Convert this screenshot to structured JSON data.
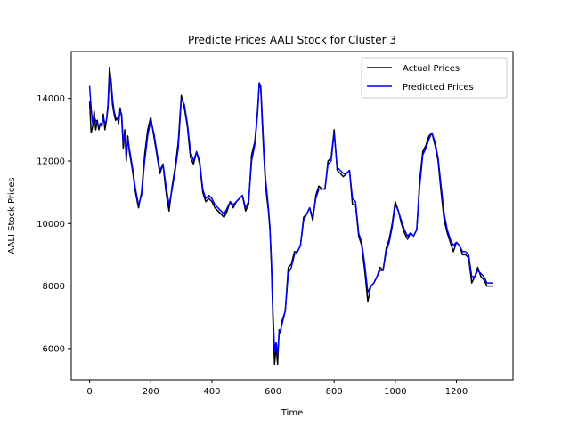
{
  "chart_data": {
    "type": "line",
    "title": "Predicte Prices AALI Stock for Cluster 3",
    "xlabel": "Time",
    "ylabel": "AALI Stock Prices",
    "xlim": [
      -60,
      1385
    ],
    "ylim": [
      5000,
      15500
    ],
    "xticks": [
      0,
      200,
      400,
      600,
      800,
      1000,
      1200
    ],
    "yticks": [
      6000,
      8000,
      10000,
      12000,
      14000
    ],
    "grid": false,
    "legend_position": "top-right",
    "series": [
      {
        "name": "Actual Prices",
        "color": "#000000",
        "x": [
          0,
          5,
          10,
          15,
          20,
          25,
          30,
          35,
          40,
          45,
          50,
          55,
          60,
          65,
          70,
          75,
          80,
          85,
          90,
          95,
          100,
          105,
          110,
          115,
          120,
          125,
          130,
          140,
          150,
          160,
          170,
          180,
          190,
          200,
          210,
          220,
          230,
          240,
          250,
          260,
          270,
          280,
          290,
          300,
          310,
          320,
          330,
          340,
          350,
          360,
          370,
          380,
          390,
          400,
          410,
          420,
          430,
          440,
          450,
          460,
          470,
          480,
          490,
          500,
          510,
          520,
          530,
          540,
          545,
          550,
          555,
          560,
          565,
          570,
          575,
          580,
          585,
          590,
          595,
          600,
          605,
          610,
          615,
          620,
          625,
          630,
          640,
          650,
          660,
          670,
          680,
          690,
          700,
          710,
          720,
          730,
          740,
          750,
          760,
          770,
          780,
          790,
          800,
          810,
          820,
          830,
          840,
          850,
          860,
          870,
          880,
          890,
          900,
          910,
          920,
          930,
          940,
          950,
          960,
          970,
          980,
          990,
          1000,
          1010,
          1020,
          1030,
          1040,
          1050,
          1060,
          1070,
          1080,
          1090,
          1100,
          1110,
          1120,
          1130,
          1140,
          1150,
          1160,
          1170,
          1180,
          1190,
          1200,
          1210,
          1220,
          1230,
          1240,
          1250,
          1260,
          1270,
          1280,
          1290,
          1300,
          1310,
          1320
        ],
        "y": [
          13900,
          12900,
          13100,
          13600,
          13000,
          13300,
          13000,
          13200,
          13100,
          13500,
          13000,
          13300,
          13800,
          15000,
          14600,
          13800,
          13500,
          13300,
          13400,
          13200,
          13700,
          13400,
          12400,
          13000,
          12000,
          12800,
          12300,
          11700,
          11000,
          10500,
          11000,
          12200,
          13000,
          13400,
          12800,
          12200,
          11600,
          11900,
          11000,
          10400,
          11200,
          11800,
          12600,
          14100,
          13700,
          13100,
          12100,
          11900,
          12300,
          11900,
          11000,
          10700,
          10800,
          10700,
          10500,
          10400,
          10300,
          10200,
          10400,
          10700,
          10500,
          10700,
          10800,
          10900,
          10400,
          10600,
          12200,
          12600,
          13100,
          13700,
          14500,
          14300,
          13200,
          12200,
          11300,
          10800,
          10400,
          9800,
          8600,
          6900,
          5500,
          6100,
          5500,
          6600,
          6500,
          6900,
          7200,
          8600,
          8700,
          9100,
          9100,
          9300,
          10200,
          10300,
          10500,
          10100,
          10900,
          11200,
          11100,
          11100,
          12000,
          12100,
          13000,
          11700,
          11600,
          11500,
          11600,
          11700,
          10600,
          10600,
          9600,
          9300,
          8500,
          7500,
          8000,
          8100,
          8300,
          8600,
          8500,
          9200,
          9500,
          10000,
          10700,
          10400,
          10000,
          9700,
          9500,
          9700,
          9600,
          9800,
          11400,
          12300,
          12500,
          12800,
          12900,
          12500,
          12000,
          11000,
          10100,
          9700,
          9400,
          9100,
          9400,
          9300,
          9000,
          9000,
          8900,
          8100,
          8300,
          8600,
          8300,
          8200,
          8000,
          8000,
          8000
        ]
      },
      {
        "name": "Predicted Prices",
        "color": "#0000ff",
        "x": [
          0,
          5,
          10,
          15,
          20,
          25,
          30,
          35,
          40,
          45,
          50,
          55,
          60,
          65,
          70,
          75,
          80,
          85,
          90,
          95,
          100,
          105,
          110,
          115,
          120,
          125,
          130,
          140,
          150,
          160,
          170,
          180,
          190,
          200,
          210,
          220,
          230,
          240,
          250,
          260,
          270,
          280,
          290,
          300,
          310,
          320,
          330,
          340,
          350,
          360,
          370,
          380,
          390,
          400,
          410,
          420,
          430,
          440,
          450,
          460,
          470,
          480,
          490,
          500,
          510,
          520,
          530,
          540,
          545,
          550,
          555,
          560,
          565,
          570,
          575,
          580,
          585,
          590,
          595,
          600,
          605,
          610,
          615,
          620,
          625,
          630,
          640,
          650,
          660,
          670,
          680,
          690,
          700,
          710,
          720,
          730,
          740,
          750,
          760,
          770,
          780,
          790,
          800,
          810,
          820,
          830,
          840,
          850,
          860,
          870,
          880,
          890,
          900,
          910,
          920,
          930,
          940,
          950,
          960,
          970,
          980,
          990,
          1000,
          1010,
          1020,
          1030,
          1040,
          1050,
          1060,
          1070,
          1080,
          1090,
          1100,
          1110,
          1120,
          1130,
          1140,
          1150,
          1160,
          1170,
          1180,
          1190,
          1200,
          1210,
          1220,
          1230,
          1240,
          1250,
          1260,
          1270,
          1280,
          1290,
          1300,
          1310,
          1320
        ],
        "y": [
          14400,
          13700,
          13200,
          13400,
          13300,
          13200,
          13100,
          13200,
          13200,
          13400,
          13200,
          13300,
          13700,
          14700,
          14600,
          14000,
          13600,
          13400,
          13400,
          13300,
          13600,
          13500,
          12600,
          12900,
          12200,
          12700,
          12400,
          11800,
          11100,
          10600,
          10900,
          12000,
          12800,
          13300,
          12900,
          12300,
          11700,
          11900,
          11200,
          10600,
          11100,
          11700,
          12400,
          14000,
          13800,
          13200,
          12300,
          12000,
          12300,
          12000,
          11100,
          10800,
          10900,
          10800,
          10600,
          10500,
          10400,
          10300,
          10500,
          10700,
          10600,
          10700,
          10800,
          10900,
          10500,
          10700,
          12000,
          12500,
          13000,
          13600,
          14500,
          14400,
          13400,
          12400,
          11500,
          11000,
          10500,
          9900,
          8800,
          7200,
          5900,
          6200,
          5800,
          6500,
          6600,
          6800,
          7200,
          8400,
          8600,
          9000,
          9100,
          9300,
          10100,
          10300,
          10500,
          10200,
          10800,
          11100,
          11100,
          11100,
          11900,
          12000,
          12900,
          11800,
          11700,
          11600,
          11600,
          11700,
          10800,
          10700,
          9700,
          9400,
          8700,
          7800,
          8000,
          8100,
          8300,
          8500,
          8500,
          9100,
          9400,
          9900,
          10600,
          10400,
          10100,
          9800,
          9600,
          9700,
          9600,
          9800,
          11200,
          12200,
          12400,
          12700,
          12900,
          12600,
          12100,
          11200,
          10300,
          9800,
          9500,
          9300,
          9400,
          9300,
          9100,
          9100,
          9000,
          8300,
          8300,
          8500,
          8400,
          8300,
          8100,
          8100,
          8100
        ]
      }
    ]
  }
}
